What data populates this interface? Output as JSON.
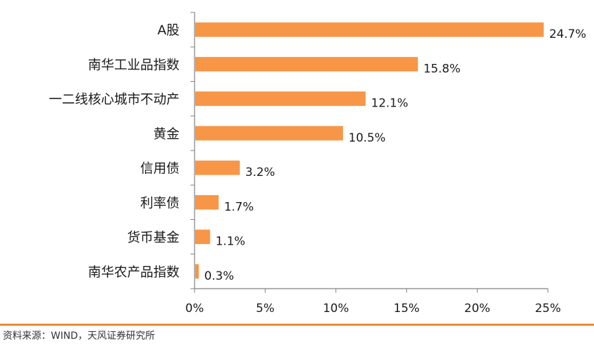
{
  "chart_data": {
    "type": "bar",
    "orientation": "horizontal",
    "categories": [
      "A股",
      "南华工业品指数",
      "一二线核心城市不动产",
      "黄金",
      "信用债",
      "利率债",
      "货币基金",
      "南华农产品指数"
    ],
    "values": [
      24.7,
      15.8,
      12.1,
      10.5,
      3.2,
      1.7,
      1.1,
      0.3
    ],
    "value_labels": [
      "24.7%",
      "15.8%",
      "12.1%",
      "10.5%",
      "3.2%",
      "1.7%",
      "1.1%",
      "0.3%"
    ],
    "xlim": [
      0,
      25
    ],
    "xticks": [
      0,
      5,
      10,
      15,
      20,
      25
    ],
    "xtick_labels": [
      "0%",
      "5%",
      "10%",
      "15%",
      "20%",
      "25%"
    ],
    "grid": false,
    "legend": "none"
  },
  "colors": {
    "bar": "#F79646",
    "axis": "#808080",
    "rule": "#E8883A"
  },
  "footer": {
    "source": "资料来源：WIND，天风证券研究所"
  }
}
